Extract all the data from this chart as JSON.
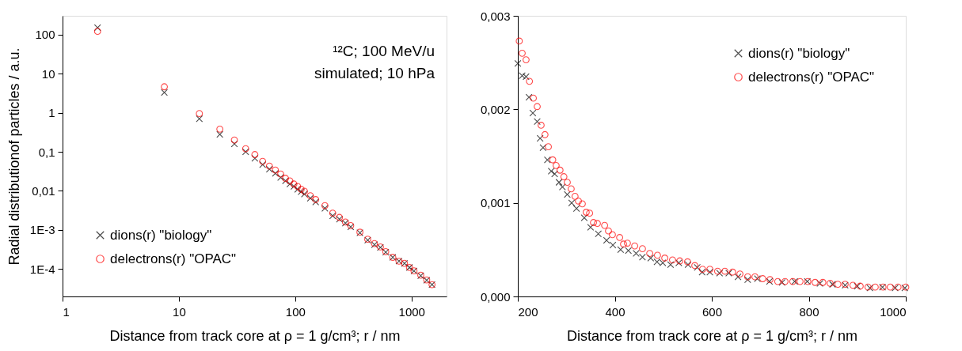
{
  "chart_data": [
    {
      "type": "scatter",
      "xlabel": "Distance from track core at ρ = 1 g/cm³; r  / nm",
      "ylabel": "Radial distributionof particles  / a.u.",
      "log": "xy",
      "xlim": [
        1,
        2000
      ],
      "ylim": [
        2e-05,
        300
      ],
      "xticks": [
        1,
        10,
        100,
        1000
      ],
      "yticks": [
        {
          "value": 0.0001,
          "label": "1E-4"
        },
        {
          "value": 0.001,
          "label": "1E-3"
        },
        {
          "value": 0.01,
          "label": "0,01"
        },
        {
          "value": 0.1,
          "label": "0,1"
        },
        1,
        10,
        100
      ],
      "grid": false,
      "legend": "bottom left",
      "annotations": [
        "¹²C; 100 MeV/u",
        "simulated; 10 hPa"
      ],
      "x": [
        2,
        7.5,
        15,
        22.5,
        30,
        37.5,
        45,
        52.5,
        60,
        67.5,
        75,
        82.5,
        90,
        97.5,
        105,
        112.5,
        120,
        135,
        150,
        180,
        210,
        240,
        270,
        300,
        360,
        420,
        480,
        540,
        600,
        690,
        780,
        870,
        960,
        1050,
        1200,
        1350,
        1500
      ],
      "series": [
        {
          "name": "dions(r) \"biology\"",
          "color": "#000000",
          "marker": "cross",
          "values": [
            150,
            3.3,
            0.7,
            0.28,
            0.16,
            0.1,
            0.068,
            0.047,
            0.036,
            0.028,
            0.022,
            0.018,
            0.015,
            0.013,
            0.011,
            0.0095,
            0.0083,
            0.0065,
            0.0052,
            0.0036,
            0.0023,
            0.0019,
            0.0015,
            0.0012,
            0.00085,
            0.00055,
            0.00042,
            0.00036,
            0.00027,
            0.0002,
            0.00016,
            0.00014,
            0.00011,
            9e-05,
            6.8e-05,
            5.2e-05,
            4e-05
          ]
        },
        {
          "name": "delectrons(r) \"OPAC\"",
          "color": "#ff0000",
          "marker": "circle",
          "values": [
            120,
            4.6,
            0.95,
            0.38,
            0.2,
            0.12,
            0.085,
            0.057,
            0.043,
            0.034,
            0.027,
            0.021,
            0.018,
            0.015,
            0.013,
            0.011,
            0.0098,
            0.0075,
            0.006,
            0.0042,
            0.0027,
            0.0021,
            0.0016,
            0.0013,
            0.00088,
            0.00058,
            0.00045,
            0.00037,
            0.00028,
            0.0002,
            0.00016,
            0.00014,
            0.00011,
            9e-05,
            7e-05,
            5.3e-05,
            4e-05
          ]
        }
      ]
    },
    {
      "type": "scatter",
      "xlabel": "Distance from track core at ρ = 1 g/cm³; r  / nm",
      "xlim": [
        200,
        1000
      ],
      "ylim": [
        0,
        0.003
      ],
      "xticks": [
        200,
        400,
        600,
        800,
        1000
      ],
      "yticks": [
        {
          "value": 0,
          "label": "0,000"
        },
        {
          "value": 0.001,
          "label": "0,001"
        },
        {
          "value": 0.002,
          "label": "0,002"
        },
        {
          "value": 0.003,
          "label": "0,003"
        }
      ],
      "grid": false,
      "legend": "top right",
      "series": [
        {
          "name": "dions(r) \"biology\"",
          "color": "#000000",
          "marker": "cross",
          "x": [
            200,
            209,
            217,
            223,
            231,
            240,
            246,
            252,
            261,
            269,
            276,
            285,
            292,
            302,
            311,
            321,
            337,
            350,
            366,
            383,
            396,
            412,
            428,
            444,
            457,
            474,
            487,
            499,
            515,
            532,
            551,
            570,
            580,
            596,
            616,
            635,
            654,
            674,
            694,
            719,
            745,
            771,
            797,
            823,
            849,
            875,
            900,
            926,
            952,
            978,
            998
          ],
          "values": [
            0.00249,
            0.00236,
            0.00235,
            0.00213,
            0.00196,
            0.00187,
            0.00169,
            0.00159,
            0.00146,
            0.00134,
            0.00131,
            0.00122,
            0.00117,
            0.00109,
            0.001,
            0.00094,
            0.00084,
            0.00074,
            0.00067,
            0.0006,
            0.00055,
            0.0005,
            0.00049,
            0.00046,
            0.00042,
            0.00041,
            0.00037,
            0.00036,
            0.00034,
            0.00036,
            0.00034,
            0.00031,
            0.00026,
            0.00026,
            0.00025,
            0.00025,
            0.00021,
            0.00018,
            0.00019,
            0.00016,
            0.00015,
            0.00016,
            0.00016,
            0.00014,
            0.00013,
            0.00012,
            0.00011,
            9e-05,
            0.0001,
            9e-05,
            9e-05
          ]
        },
        {
          "name": "delectrons(r) \"OPAC\"",
          "color": "#ff0000",
          "marker": "circle",
          "x": [
            203,
            209,
            217,
            224,
            232,
            240,
            248,
            256,
            263,
            272,
            279,
            287,
            295,
            302,
            310,
            318,
            325,
            333,
            341,
            348,
            356,
            364,
            379,
            387,
            395,
            410,
            418,
            426,
            441,
            457,
            472,
            488,
            503,
            519,
            534,
            550,
            565,
            581,
            596,
            612,
            627,
            643,
            658,
            674,
            689,
            705,
            720,
            736,
            751,
            767,
            782,
            798,
            813,
            829,
            844,
            860,
            875,
            891,
            906,
            922,
            937,
            953,
            968,
            984,
            1000
          ],
          "values": [
            0.00273,
            0.0026,
            0.00253,
            0.0023,
            0.00212,
            0.00203,
            0.00183,
            0.00173,
            0.0016,
            0.00146,
            0.0014,
            0.00135,
            0.00128,
            0.00122,
            0.00115,
            0.00107,
            0.00102,
            0.00099,
            0.0009,
            0.00089,
            0.00079,
            0.00078,
            0.00076,
            0.0007,
            0.00066,
            0.00063,
            0.00056,
            0.00057,
            0.00054,
            0.00051,
            0.00046,
            0.00044,
            0.00041,
            0.00039,
            0.00038,
            0.00037,
            0.00033,
            0.00029,
            0.00029,
            0.00027,
            0.00027,
            0.00026,
            0.00024,
            0.00021,
            0.00021,
            0.00019,
            0.00018,
            0.00016,
            0.00016,
            0.00016,
            0.00016,
            0.00016,
            0.00015,
            0.00015,
            0.00014,
            0.00013,
            0.00013,
            0.00012,
            0.00011,
            0.0001,
            0.0001,
            0.0001,
            0.0001,
            0.0001,
            0.0001
          ]
        }
      ]
    }
  ]
}
